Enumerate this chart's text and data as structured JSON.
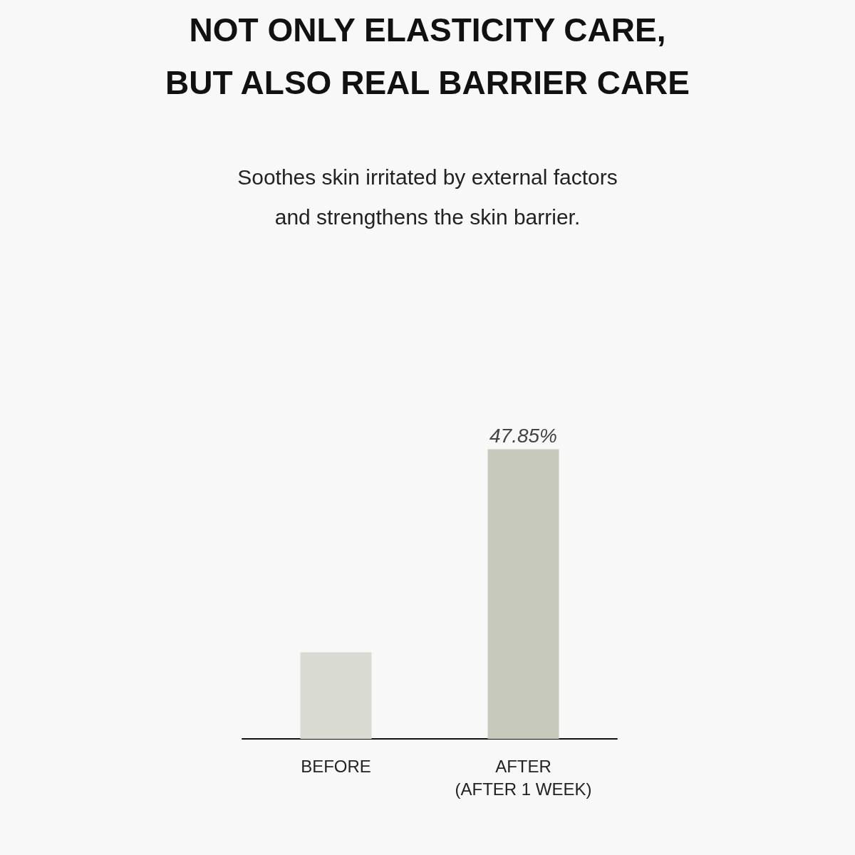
{
  "chart_data": {
    "type": "bar",
    "title": "NOT ONLY ELASTICITY CARE,\nBUT ALSO REAL BARRIER CARE",
    "subtitle": "Soothes skin irritated by external factors\nand strengthens the skin barrier.",
    "categories": [
      "BEFORE",
      "AFTER\n(AFTER 1 WEEK)"
    ],
    "values": [
      14.3,
      47.85
    ],
    "colors": [
      "#d9dad1",
      "#c8c9bd"
    ],
    "value_labels": [
      null,
      "47.85%"
    ]
  }
}
